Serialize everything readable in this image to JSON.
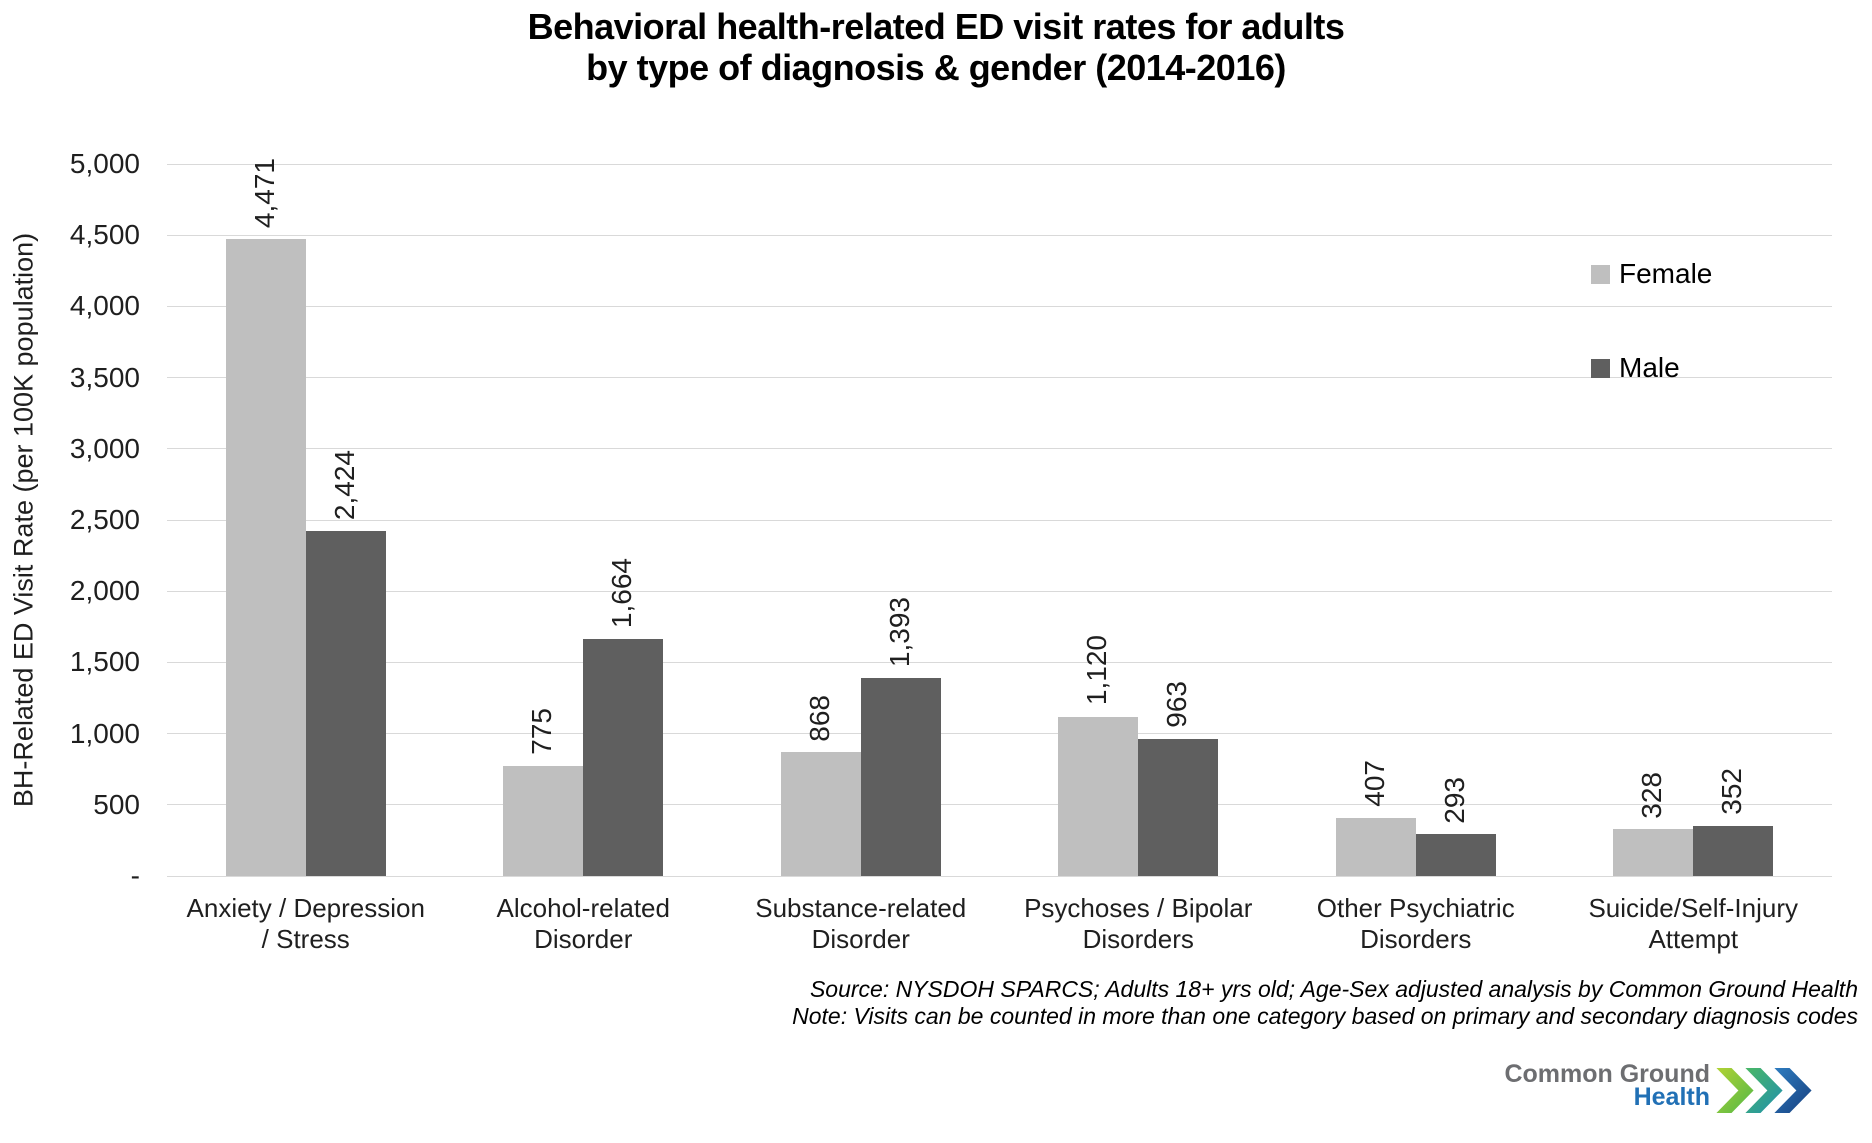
{
  "title": {
    "line1": "Behavioral health-related ED visit rates for adults",
    "line2": "by type of diagnosis & gender (2014-2016)"
  },
  "y_axis": {
    "label": "BH-Related ED Visit Rate (per 100K population)",
    "ticks_top_to_bottom": [
      "5,000",
      "4,500",
      "4,000",
      "3,500",
      "3,000",
      "2,500",
      "2,000",
      "1,500",
      "1,000",
      "500",
      "-"
    ]
  },
  "legend": [
    {
      "label": "Female",
      "color": "#bfbfbf"
    },
    {
      "label": "Male",
      "color": "#5f5f5f"
    }
  ],
  "footnote": {
    "source": "Source: NYSDOH SPARCS; Adults 18+ yrs old; Age-Sex adjusted analysis by Common Ground Health",
    "note": "Note: Visits can be counted in more than one category based on primary and secondary diagnosis codes"
  },
  "logo": {
    "line1": "Common Ground",
    "line2": "Health",
    "gray": "#6d6e71",
    "blue": "#2170b5",
    "chevron_colors": [
      [
        "#b5d334",
        "#4eb748"
      ],
      [
        "#4cb963",
        "#1e8fb0"
      ],
      [
        "#2f7fc2",
        "#173e7d"
      ]
    ]
  },
  "chart_data": {
    "type": "bar",
    "title": "Behavioral health-related ED visit rates for adults by type of diagnosis & gender (2014-2016)",
    "categories": [
      "Anxiety / Depression / Stress",
      "Alcohol-related Disorder",
      "Substance-related Disorder",
      "Psychoses / Bipolar Disorders",
      "Other Psychiatric Disorders",
      "Suicide/Self-Injury Attempt"
    ],
    "category_labels_2line": [
      "Anxiety / Depression\n/ Stress",
      "Alcohol-related\nDisorder",
      "Substance-related\nDisorder",
      "Psychoses / Bipolar\nDisorders",
      "Other Psychiatric\nDisorders",
      "Suicide/Self-Injury\nAttempt"
    ],
    "series": [
      {
        "name": "Female",
        "color": "#bfbfbf",
        "values": [
          4471,
          775,
          868,
          1120,
          407,
          328
        ],
        "labels": [
          "4,471",
          "775",
          "868",
          "1,120",
          "407",
          "328"
        ]
      },
      {
        "name": "Male",
        "color": "#5f5f5f",
        "values": [
          2424,
          1664,
          1393,
          963,
          293,
          352
        ],
        "labels": [
          "2,424",
          "1,664",
          "1,393",
          "963",
          "293",
          "352"
        ]
      }
    ],
    "xlabel": "",
    "ylabel": "BH-Related ED Visit Rate (per 100K population)",
    "ylim": [
      0,
      5000
    ],
    "ytick_step": 500,
    "grid": "horizontal",
    "legend_position": "inside-right",
    "bar_value_labels_rotated": true
  }
}
